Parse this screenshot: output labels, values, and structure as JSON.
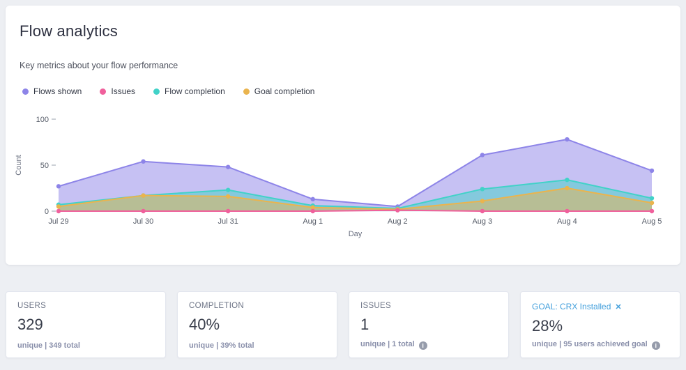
{
  "header": {
    "title": "Flow analytics",
    "subtitle": "Key metrics about your flow performance"
  },
  "icons": {
    "info": "i",
    "close": "✕"
  },
  "legend": {
    "items": [
      {
        "label": "Flows shown",
        "color": "#8d84e8"
      },
      {
        "label": "Issues",
        "color": "#f0609c"
      },
      {
        "label": "Flow completion",
        "color": "#41d2c8"
      },
      {
        "label": "Goal completion",
        "color": "#eab44e"
      }
    ]
  },
  "chart_data": {
    "type": "area",
    "title": "",
    "xlabel": "Day",
    "ylabel": "Count",
    "categories": [
      "Jul 29",
      "Jul 30",
      "Jul 31",
      "Aug 1",
      "Aug 2",
      "Aug 3",
      "Aug 4",
      "Aug 5"
    ],
    "series": [
      {
        "name": "Flows shown",
        "color": "#8d84e8",
        "fill_opacity": 0.5,
        "values": [
          27,
          54,
          48,
          13,
          5,
          61,
          78,
          44
        ]
      },
      {
        "name": "Flow completion",
        "color": "#41d2c8",
        "fill_opacity": 0.5,
        "values": [
          7,
          17,
          23,
          6,
          3,
          24,
          34,
          14
        ]
      },
      {
        "name": "Goal completion",
        "color": "#eab44e",
        "fill_opacity": 0.5,
        "values": [
          5,
          17,
          16,
          4,
          2,
          11,
          25,
          9
        ]
      },
      {
        "name": "Issues",
        "color": "#f0609c",
        "fill_opacity": 0.4,
        "values": [
          0,
          0,
          0,
          0,
          1,
          0,
          0,
          0
        ]
      }
    ],
    "ylim": [
      0,
      100
    ],
    "yticks": [
      0,
      50,
      100
    ],
    "grid": false,
    "legend_position": "top"
  },
  "stats": {
    "cards": [
      {
        "label": "USERS",
        "value": "329",
        "footer": "unique | 349 total"
      },
      {
        "label": "COMPLETION",
        "value": "40%",
        "footer": "unique | 39% total"
      },
      {
        "label": "ISSUES",
        "value": "1",
        "footer": "unique | 1 total"
      },
      {
        "label": "GOAL: CRX Installed",
        "value": "28%",
        "footer": "unique | 95 users achieved goal"
      }
    ]
  }
}
